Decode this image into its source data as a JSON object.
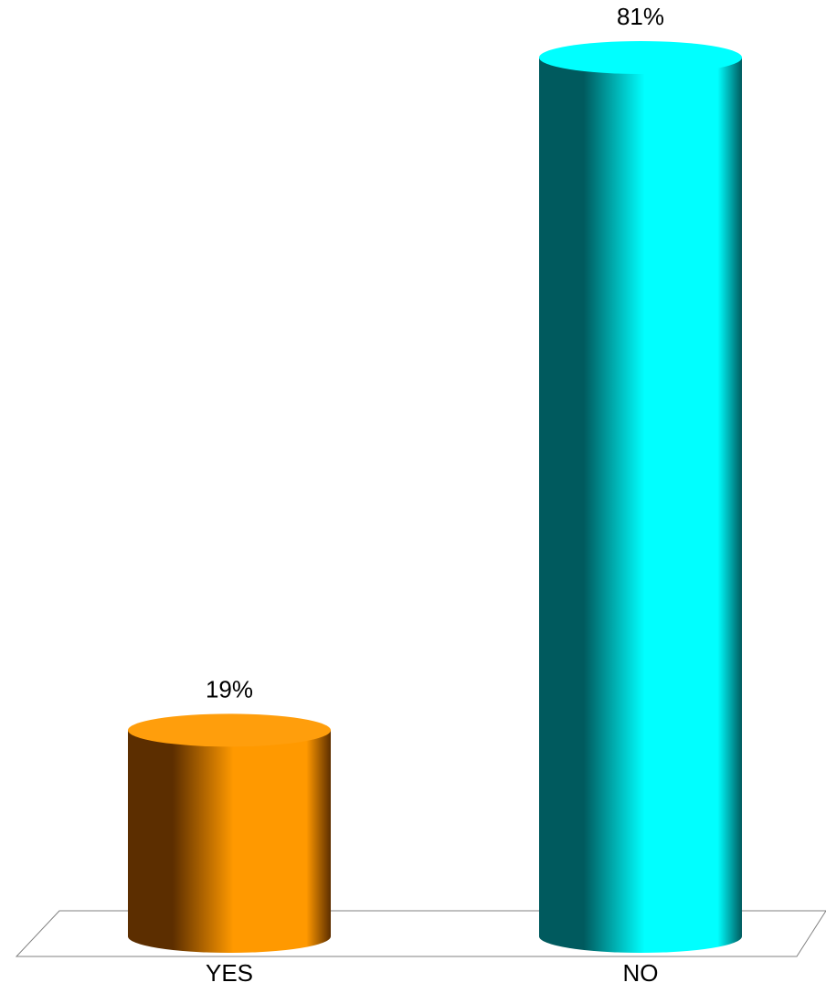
{
  "chart_data": {
    "type": "bar",
    "style": "3d-cylinder",
    "categories": [
      "YES",
      "NO"
    ],
    "values": [
      19,
      81
    ],
    "data_labels": [
      "19%",
      "81%"
    ],
    "ylim": [
      0,
      81
    ],
    "grid": false,
    "title": "",
    "xlabel": "",
    "ylabel": "",
    "colors": [
      {
        "light": "#ff9900",
        "dark": "#5c2e00",
        "top": "#ff9e0c"
      },
      {
        "light": "#00ffff",
        "dark": "#005a5e",
        "top": "#00ffff"
      }
    ],
    "floor_color": "#808080"
  }
}
